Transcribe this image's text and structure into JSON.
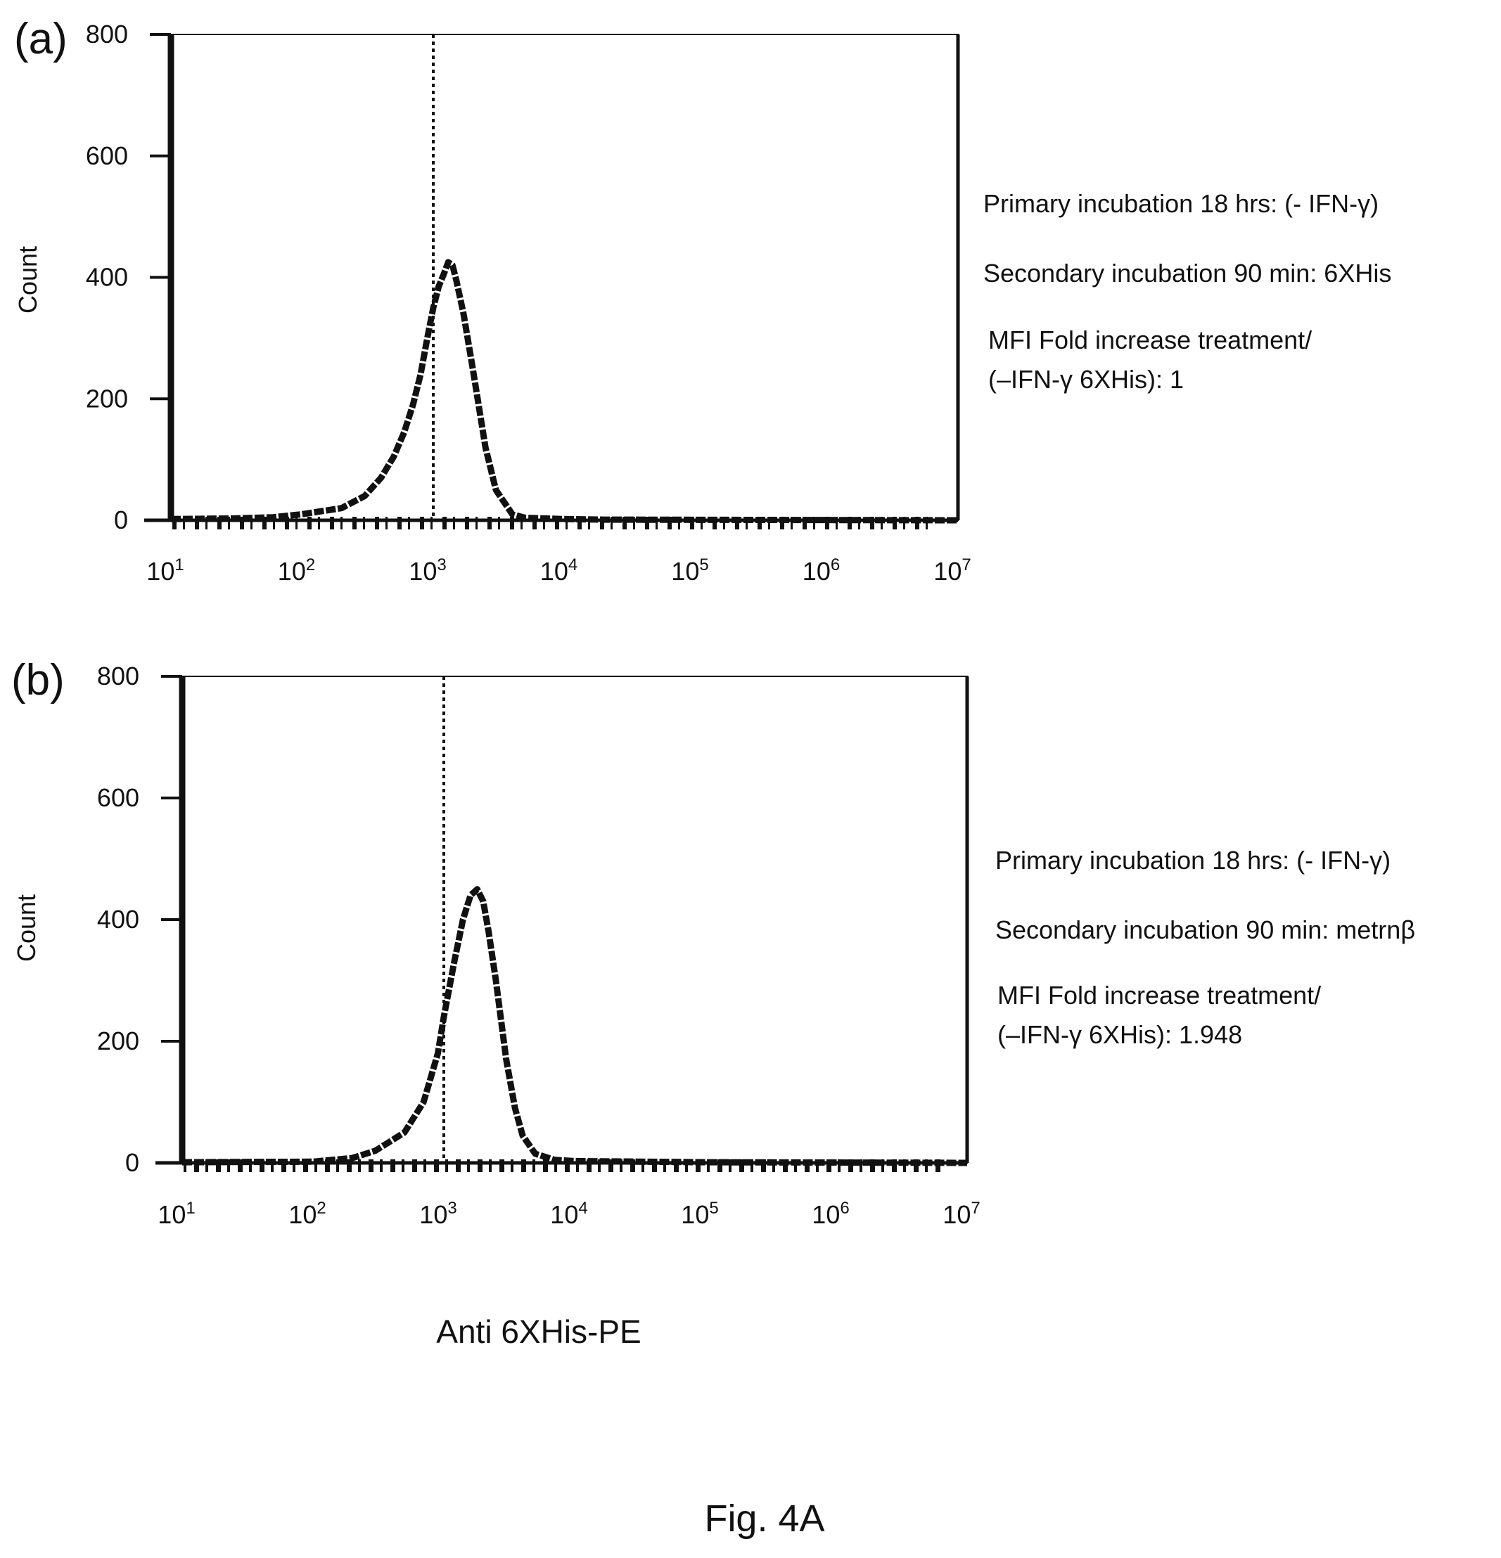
{
  "figure_label": "Fig. 4A",
  "x_axis_title": "Anti 6XHis-PE",
  "chart_data": [
    {
      "type": "line",
      "panel_label": "(a)",
      "ylabel": "Count",
      "ylim": [
        0,
        800
      ],
      "y_ticks": [
        "0",
        "200",
        "400",
        "600",
        "800"
      ],
      "x_scale": "log",
      "xlim": [
        10,
        10000000
      ],
      "x_ticks": [
        {
          "base": "10",
          "exp": "1"
        },
        {
          "base": "10",
          "exp": "2"
        },
        {
          "base": "10",
          "exp": "3"
        },
        {
          "base": "10",
          "exp": "4"
        },
        {
          "base": "10",
          "exp": "5"
        },
        {
          "base": "10",
          "exp": "6"
        },
        {
          "base": "10",
          "exp": "7"
        }
      ],
      "reference_line_x": 1000,
      "series": [
        {
          "x": [
            10,
            30,
            60,
            100,
            200,
            300,
            400,
            500,
            600,
            700,
            800,
            900,
            1000,
            1100,
            1200,
            1300,
            1400,
            1500,
            1700,
            2000,
            2500,
            3000,
            4000,
            5000,
            10000,
            20000,
            10000000
          ],
          "values": [
            2,
            3,
            5,
            10,
            20,
            40,
            70,
            105,
            145,
            190,
            240,
            300,
            350,
            385,
            405,
            425,
            420,
            395,
            340,
            250,
            120,
            50,
            10,
            4,
            2,
            1,
            0
          ]
        }
      ],
      "info": [
        "Primary incubation 18 hrs: (- IFN-γ)",
        "Secondary incubation 90 min: 6XHis",
        "MFI Fold increase treatment/",
        "(–IFN-γ 6XHis): 1"
      ]
    },
    {
      "type": "line",
      "panel_label": "(b)",
      "ylabel": "Count",
      "ylim": [
        0,
        800
      ],
      "y_ticks": [
        "0",
        "200",
        "400",
        "600",
        "800"
      ],
      "x_scale": "log",
      "xlim": [
        10,
        10000000
      ],
      "x_ticks": [
        {
          "base": "10",
          "exp": "1"
        },
        {
          "base": "10",
          "exp": "2"
        },
        {
          "base": "10",
          "exp": "3"
        },
        {
          "base": "10",
          "exp": "4"
        },
        {
          "base": "10",
          "exp": "5"
        },
        {
          "base": "10",
          "exp": "6"
        },
        {
          "base": "10",
          "exp": "7"
        }
      ],
      "reference_line_x": 1000,
      "series": [
        {
          "x": [
            10,
            100,
            200,
            300,
            500,
            700,
            900,
            1000,
            1200,
            1400,
            1600,
            1800,
            2000,
            2200,
            2500,
            3000,
            3500,
            4000,
            5000,
            7000,
            10000,
            100000,
            10000000
          ],
          "values": [
            1,
            2,
            8,
            20,
            50,
            100,
            180,
            240,
            330,
            400,
            440,
            450,
            430,
            380,
            300,
            170,
            90,
            45,
            15,
            5,
            3,
            1,
            0
          ]
        }
      ],
      "info": [
        "Primary incubation 18 hrs: (- IFN-γ)",
        "Secondary incubation 90 min: metrnβ",
        "MFI Fold increase treatment/",
        "(–IFN-γ 6XHis): 1.948"
      ]
    }
  ],
  "colors": {
    "ink": "#111111",
    "background": "#ffffff"
  }
}
